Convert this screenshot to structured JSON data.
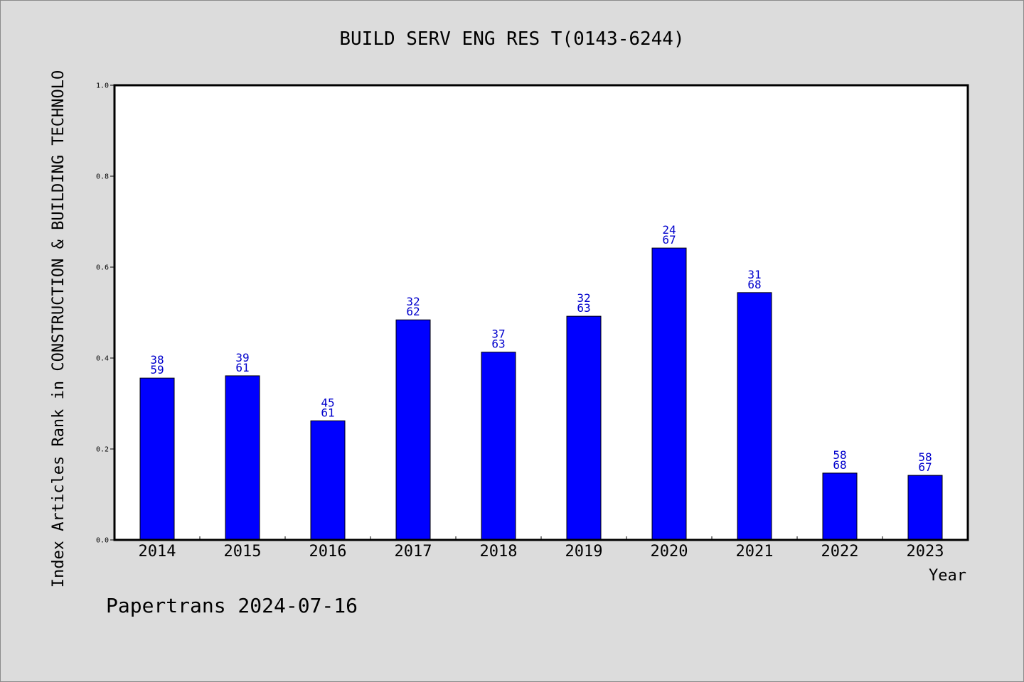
{
  "chart_data": {
    "type": "bar",
    "title": "BUILD SERV ENG RES T(0143-6244)",
    "xlabel": "Year",
    "ylabel": "Index Articles Rank in CONSTRUCTION & BUILDING TECHNOLO",
    "ylim": [
      0,
      1.0
    ],
    "yticks": [
      "0.0",
      "0.2",
      "0.4",
      "0.6",
      "0.8",
      "1.0"
    ],
    "categories": [
      "2014",
      "2015",
      "2016",
      "2017",
      "2018",
      "2019",
      "2020",
      "2021",
      "2022",
      "2023"
    ],
    "values": [
      0.356,
      0.361,
      0.262,
      0.484,
      0.413,
      0.492,
      0.642,
      0.544,
      0.147,
      0.142
    ],
    "rank_labels": [
      "38",
      "39",
      "45",
      "32",
      "37",
      "32",
      "24",
      "31",
      "58",
      "58"
    ],
    "total_labels": [
      "59",
      "61",
      "61",
      "62",
      "63",
      "63",
      "67",
      "68",
      "68",
      "67"
    ],
    "bar_color": "#0000ff",
    "label_color": "#0000cc",
    "grid": false,
    "legend": "none"
  },
  "footer": "Papertrans 2024-07-16"
}
